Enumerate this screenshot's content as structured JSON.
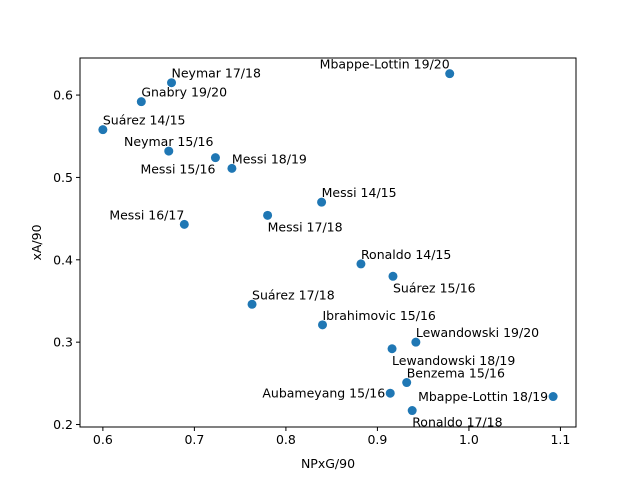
{
  "chart_data": {
    "type": "scatter",
    "title": "",
    "xlabel": "NPxG/90",
    "ylabel": "xA/90",
    "xlim": [
      0.575,
      1.117
    ],
    "ylim": [
      0.197,
      0.645
    ],
    "xticks": [
      0.6,
      0.7,
      0.8,
      0.9,
      1.0,
      1.1
    ],
    "xtick_labels": [
      "0.6",
      "0.7",
      "0.8",
      "0.9",
      "1.0",
      "1.1"
    ],
    "yticks": [
      0.2,
      0.3,
      0.4,
      0.5,
      0.6
    ],
    "ytick_labels": [
      "0.2",
      "0.3",
      "0.4",
      "0.5",
      "0.6"
    ],
    "grid": false,
    "marker_color": "#1f77b4",
    "points": [
      {
        "label": "Neymar 17/18",
        "x": 0.675,
        "y": 0.615,
        "align": "left-above"
      },
      {
        "label": "Gnabry 19/20",
        "x": 0.642,
        "y": 0.592,
        "align": "left-above"
      },
      {
        "label": "Suárez 14/15",
        "x": 0.6,
        "y": 0.558,
        "align": "left-above"
      },
      {
        "label": "Neymar 15/16",
        "x": 0.672,
        "y": 0.532,
        "align": "center-above"
      },
      {
        "label": "Messi 15/16",
        "x": 0.723,
        "y": 0.524,
        "align": "right-below"
      },
      {
        "label": "Messi 18/19",
        "x": 0.741,
        "y": 0.511,
        "align": "left-above"
      },
      {
        "label": "Messi 16/17",
        "x": 0.689,
        "y": 0.443,
        "align": "right-above"
      },
      {
        "label": "Messi 17/18",
        "x": 0.78,
        "y": 0.454,
        "align": "left-below"
      },
      {
        "label": "Messi 14/15",
        "x": 0.839,
        "y": 0.47,
        "align": "left-above"
      },
      {
        "label": "Mbappe-Lottin 19/20",
        "x": 0.979,
        "y": 0.626,
        "align": "right-above"
      },
      {
        "label": "Ronaldo 14/15",
        "x": 0.882,
        "y": 0.395,
        "align": "left-above"
      },
      {
        "label": "Suárez 15/16",
        "x": 0.917,
        "y": 0.38,
        "align": "left-below"
      },
      {
        "label": "Suárez 17/18",
        "x": 0.763,
        "y": 0.346,
        "align": "left-above"
      },
      {
        "label": "Ibrahimovic 15/16",
        "x": 0.84,
        "y": 0.321,
        "align": "left-above"
      },
      {
        "label": "Lewandowski 19/20",
        "x": 0.942,
        "y": 0.3,
        "align": "left-above"
      },
      {
        "label": "Lewandowski 18/19",
        "x": 0.916,
        "y": 0.292,
        "align": "left-below"
      },
      {
        "label": "Benzema 15/16",
        "x": 0.932,
        "y": 0.251,
        "align": "left-above"
      },
      {
        "label": "Aubameyang 15/16",
        "x": 0.914,
        "y": 0.238,
        "align": "right-center"
      },
      {
        "label": "Mbappe-Lottin 18/19",
        "x": 1.092,
        "y": 0.234,
        "align": "right-center"
      },
      {
        "label": "Ronaldo 17/18",
        "x": 0.938,
        "y": 0.217,
        "align": "left-below"
      }
    ]
  }
}
